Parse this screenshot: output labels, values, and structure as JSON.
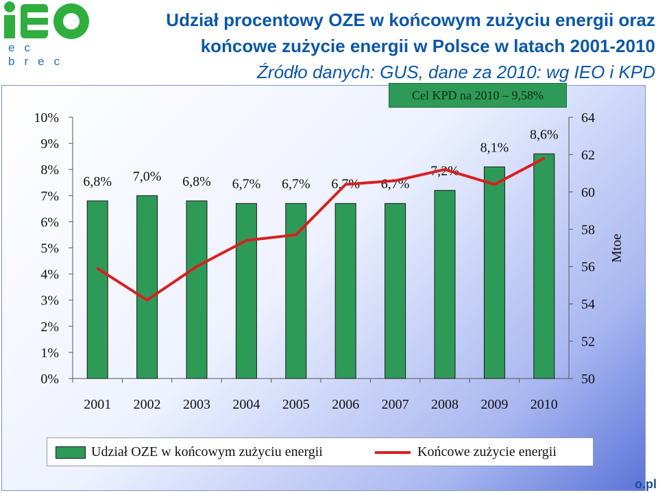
{
  "header": {
    "logo_sub": "ec brec",
    "title_line1": "Udział procentowy OZE w końcowym zużyciu energii oraz",
    "title_line2": "końcowe zużycie energii w Polsce w latach 2001-2010",
    "title_line3": "Źródło danych: GUS, dane  za 2010: wg IEO i KPD"
  },
  "goal_note": "Cel KPD na 2010 – 9,58%",
  "footer_text": "o.pl",
  "colors": {
    "bar": "#2e9a57",
    "line": "#d62020",
    "title": "#0a57a8"
  },
  "chart_data": {
    "type": "bar",
    "categories": [
      "2001",
      "2002",
      "2003",
      "2004",
      "2005",
      "2006",
      "2007",
      "2008",
      "2009",
      "2010"
    ],
    "series": [
      {
        "name": "Udział OZE w końcowym zużyciu energii",
        "type": "bar",
        "axis": "left",
        "values": [
          6.8,
          7.0,
          6.8,
          6.7,
          6.7,
          6.7,
          6.7,
          7.2,
          8.1,
          8.6
        ],
        "labels": [
          "6,8%",
          "7,0%",
          "6,8%",
          "6,7%",
          "6,7%",
          "6,7%",
          "6,7%",
          "7,2%",
          "8,1%",
          "8,6%"
        ]
      },
      {
        "name": "Końcowe zużycie energii",
        "type": "line",
        "axis": "right",
        "values": [
          55.9,
          54.2,
          56.0,
          57.4,
          57.7,
          60.4,
          60.6,
          61.2,
          60.4,
          61.8
        ]
      }
    ],
    "y_left": {
      "min": 0,
      "max": 10,
      "ticks": [
        "0%",
        "1%",
        "2%",
        "3%",
        "4%",
        "5%",
        "6%",
        "7%",
        "8%",
        "9%",
        "10%"
      ]
    },
    "y_right": {
      "min": 50,
      "max": 64,
      "ticks": [
        "50",
        "52",
        "54",
        "56",
        "58",
        "60",
        "62",
        "64"
      ],
      "label": "Mtoe"
    },
    "legend_placement": "bottom",
    "grid": false
  }
}
